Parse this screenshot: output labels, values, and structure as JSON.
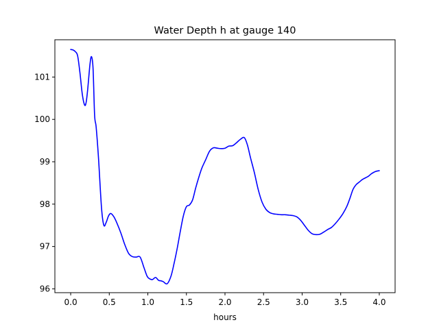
{
  "chart_data": {
    "type": "line",
    "title": "Water Depth h at gauge 140",
    "xlabel": "hours",
    "ylabel": "",
    "xlim": [
      -0.205,
      4.205
    ],
    "ylim": [
      95.91,
      101.88
    ],
    "xticks": [
      0.0,
      0.5,
      1.0,
      1.5,
      2.0,
      2.5,
      3.0,
      3.5,
      4.0
    ],
    "xtick_labels": [
      "0.0",
      "0.5",
      "1.0",
      "1.5",
      "2.0",
      "2.5",
      "3.0",
      "3.5",
      "4.0"
    ],
    "yticks": [
      96,
      97,
      98,
      99,
      100,
      101
    ],
    "ytick_labels": [
      "96",
      "97",
      "98",
      "99",
      "100",
      "101"
    ],
    "grid": false,
    "series": [
      {
        "color": "#0000ff",
        "x": [
          0.0,
          0.03,
          0.06,
          0.09,
          0.12,
          0.15,
          0.18,
          0.2,
          0.22,
          0.25,
          0.27,
          0.29,
          0.31,
          0.33,
          0.36,
          0.4,
          0.43,
          0.46,
          0.49,
          0.52,
          0.56,
          0.6,
          0.65,
          0.7,
          0.75,
          0.8,
          0.85,
          0.9,
          0.95,
          0.99,
          1.02,
          1.06,
          1.1,
          1.14,
          1.17,
          1.2,
          1.25,
          1.3,
          1.34,
          1.38,
          1.42,
          1.46,
          1.5,
          1.54,
          1.58,
          1.62,
          1.66,
          1.7,
          1.75,
          1.8,
          1.85,
          1.9,
          1.95,
          2.0,
          2.05,
          2.1,
          2.15,
          2.2,
          2.25,
          2.29,
          2.33,
          2.38,
          2.43,
          2.48,
          2.53,
          2.58,
          2.63,
          2.68,
          2.73,
          2.78,
          2.83,
          2.88,
          2.93,
          2.98,
          3.03,
          3.08,
          3.13,
          3.18,
          3.23,
          3.28,
          3.33,
          3.38,
          3.43,
          3.48,
          3.53,
          3.58,
          3.62,
          3.66,
          3.7,
          3.74,
          3.78,
          3.82,
          3.86,
          3.9,
          3.95,
          4.0
        ],
        "y": [
          101.65,
          101.64,
          101.6,
          101.5,
          101.1,
          100.6,
          100.34,
          100.4,
          100.7,
          101.3,
          101.48,
          101.2,
          100.1,
          99.82,
          99.1,
          97.9,
          97.5,
          97.57,
          97.72,
          97.78,
          97.7,
          97.55,
          97.32,
          97.05,
          96.84,
          96.76,
          96.75,
          96.75,
          96.5,
          96.3,
          96.24,
          96.22,
          96.27,
          96.2,
          96.19,
          96.17,
          96.12,
          96.3,
          96.6,
          96.95,
          97.35,
          97.72,
          97.94,
          97.98,
          98.1,
          98.38,
          98.63,
          98.85,
          99.05,
          99.25,
          99.33,
          99.32,
          99.31,
          99.32,
          99.37,
          99.38,
          99.45,
          99.53,
          99.57,
          99.4,
          99.1,
          98.75,
          98.35,
          98.05,
          97.88,
          97.8,
          97.77,
          97.76,
          97.75,
          97.75,
          97.74,
          97.73,
          97.7,
          97.62,
          97.5,
          97.38,
          97.3,
          97.28,
          97.29,
          97.34,
          97.4,
          97.45,
          97.54,
          97.65,
          97.78,
          97.95,
          98.14,
          98.35,
          98.46,
          98.52,
          98.58,
          98.62,
          98.66,
          98.72,
          98.77,
          98.79
        ]
      }
    ]
  }
}
